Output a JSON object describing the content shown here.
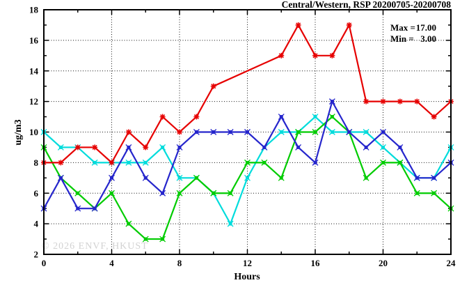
{
  "title": "Central/Western, RSP 20200705-20200708",
  "stats": {
    "max_label": "Max =",
    "max_value": "17.00",
    "min_label": "Min =",
    "min_value": "3.00"
  },
  "watermark": "© 2026 ENVF, HKUST",
  "chart_data": {
    "type": "line",
    "title": "Central/Western, RSP 20200705-20200708",
    "xlabel": "Hours",
    "ylabel": "ug/m3",
    "xlim": [
      0,
      24
    ],
    "ylim": [
      2,
      18
    ],
    "grid": "dotted",
    "legend_position": "none",
    "x_major_ticks": [
      0,
      4,
      8,
      12,
      16,
      20,
      24
    ],
    "x_minor_ticks": [
      2,
      6,
      10,
      14,
      18,
      22
    ],
    "y_major_ticks": [
      2,
      4,
      6,
      8,
      10,
      12,
      14,
      16,
      18
    ],
    "y_minor_ticks": [
      3,
      5,
      7,
      9,
      11,
      13,
      15,
      17
    ],
    "grid_x": [
      4,
      8,
      12,
      16,
      20
    ],
    "grid_y": [
      4,
      6,
      8,
      10,
      12,
      14,
      16
    ],
    "x": [
      0,
      1,
      2,
      3,
      4,
      5,
      6,
      7,
      8,
      9,
      10,
      11,
      12,
      13,
      14,
      15,
      16,
      17,
      18,
      19,
      20,
      21,
      22,
      23,
      24
    ],
    "series": [
      {
        "name": "series-cyan",
        "color": "#00dcdc",
        "marker": "box-x",
        "values": [
          10,
          9,
          9,
          8,
          8,
          8,
          8,
          9,
          7,
          7,
          6,
          4,
          7,
          9,
          10,
          10,
          11,
          10,
          10,
          10,
          9,
          8,
          7,
          7,
          9
        ]
      },
      {
        "name": "series-green",
        "color": "#00cc00",
        "marker": "box-x",
        "values": [
          9,
          7,
          6,
          5,
          6,
          4,
          3,
          3,
          6,
          7,
          6,
          6,
          8,
          8,
          7,
          10,
          10,
          11,
          10,
          7,
          8,
          8,
          6,
          6,
          5
        ]
      },
      {
        "name": "series-blue",
        "color": "#2626cc",
        "marker": "box-x",
        "values": [
          5,
          7,
          5,
          5,
          7,
          9,
          7,
          6,
          9,
          10,
          10,
          10,
          10,
          9,
          11,
          9,
          8,
          12,
          10,
          9,
          10,
          9,
          7,
          7,
          8
        ]
      },
      {
        "name": "series-red",
        "color": "#e60000",
        "marker": "asterisk",
        "values": [
          8,
          8,
          9,
          9,
          8,
          10,
          9,
          11,
          10,
          11,
          13,
          null,
          null,
          null,
          15,
          17,
          15,
          15,
          17,
          12,
          12,
          12,
          12,
          11,
          12
        ]
      }
    ]
  }
}
